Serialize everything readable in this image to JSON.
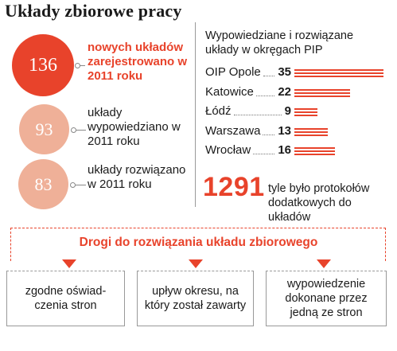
{
  "title": "Układy zbiorowe pracy",
  "circles": [
    {
      "value": "136",
      "label": "nowych układów zarejestrowano w 2011 roku"
    },
    {
      "value": "93",
      "label": "układy wypowiedziano w 2011 roku"
    },
    {
      "value": "83",
      "label": "układy rozwiązano w 2011 roku"
    }
  ],
  "pip": {
    "subtitle": "Wypowiedziane i rozwiązane układy w okręgach PIP"
  },
  "chart_data": {
    "type": "bar",
    "orientation": "horizontal",
    "categories": [
      "OIP Opole",
      "Katowice",
      "Łódź",
      "Warszawa",
      "Wrocław"
    ],
    "values": [
      35,
      22,
      9,
      13,
      16
    ],
    "title": "Wypowiedziane i rozwiązane układy w okręgach PIP",
    "bar_color": "#e8432b"
  },
  "protocols": {
    "number": "1291",
    "text": "tyle było protokołów dodatkowych do układów"
  },
  "ways": {
    "title": "Drogi do rozwiązania układu zbiorowego",
    "items": [
      "zgodne oświad-czenia stron",
      "upływ okresu, na który został zawarty",
      "wypowiedzenie dokonane przez jedną ze stron"
    ]
  },
  "colors": {
    "accent": "#e8432b",
    "light": "#efb098"
  }
}
